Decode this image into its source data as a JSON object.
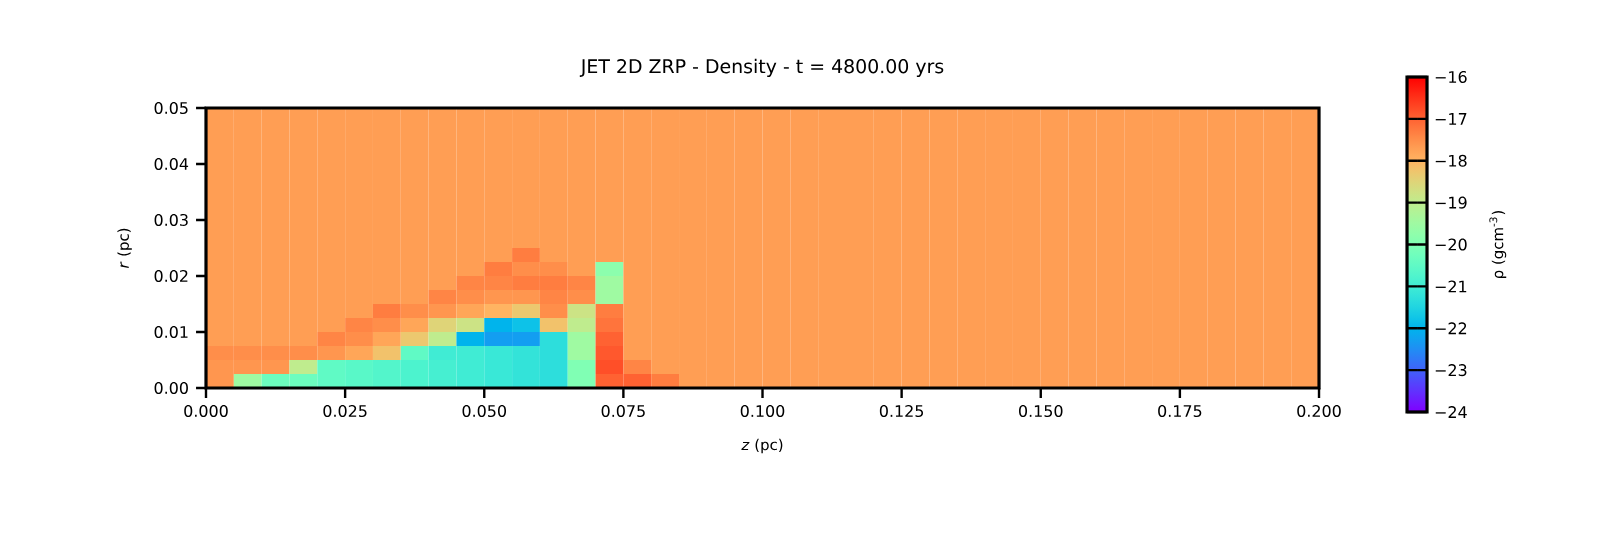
{
  "chart_data": {
    "type": "heatmap",
    "title": "JET 2D ZRP - Density - t = 4800.00 yrs",
    "xlabel": "*z*  (pc)",
    "ylabel": "*r*  (pc)",
    "clabel": "ρ  (gcm$^{-3}$)",
    "xlim": [
      0,
      0.2
    ],
    "ylim": [
      0,
      0.05
    ],
    "xticks": [
      {
        "value": 0,
        "label": "0.000"
      },
      {
        "value": 0.025,
        "label": "0.025"
      },
      {
        "value": 0.05,
        "label": "0.050"
      },
      {
        "value": 0.075,
        "label": "0.075"
      },
      {
        "value": 0.1,
        "label": "0.100"
      },
      {
        "value": 0.125,
        "label": "0.125"
      },
      {
        "value": 0.15,
        "label": "0.150"
      },
      {
        "value": 0.175,
        "label": "0.175"
      },
      {
        "value": 0.2,
        "label": "0.200"
      }
    ],
    "yticks": [
      {
        "value": 0,
        "label": "0.00"
      },
      {
        "value": 0.01,
        "label": "0.01"
      },
      {
        "value": 0.02,
        "label": "0.02"
      },
      {
        "value": 0.03,
        "label": "0.03"
      },
      {
        "value": 0.04,
        "label": "0.04"
      },
      {
        "value": 0.05,
        "label": "0.05"
      }
    ],
    "clim": [
      -24,
      -16
    ],
    "cticks": [
      {
        "value": -24,
        "label": "−24"
      },
      {
        "value": -23,
        "label": "−23"
      },
      {
        "value": -22,
        "label": "−22"
      },
      {
        "value": -21,
        "label": "−21"
      },
      {
        "value": -20,
        "label": "−20"
      },
      {
        "value": -19,
        "label": "−19"
      },
      {
        "value": -18,
        "label": "−18"
      },
      {
        "value": -17,
        "label": "−17"
      },
      {
        "value": -16,
        "label": "−16"
      }
    ],
    "x": [
      0.0025,
      0.0075,
      0.0125,
      0.0175,
      0.0225,
      0.0275,
      0.0325,
      0.0375,
      0.0425,
      0.0475,
      0.0525,
      0.0575,
      0.0625,
      0.0675,
      0.0725,
      0.0775,
      0.0825,
      0.0875,
      0.0925,
      0.0975,
      0.1025,
      0.1075,
      0.1125,
      0.1175,
      0.1225,
      0.1275,
      0.1325,
      0.1375,
      0.1425,
      0.1475,
      0.1525,
      0.1575,
      0.1625,
      0.1675,
      0.1725,
      0.1775,
      0.1825,
      0.1875,
      0.1925,
      0.1975
    ],
    "y": [
      0.04875,
      0.04625,
      0.04375,
      0.04125,
      0.03875,
      0.03625,
      0.03375,
      0.03125,
      0.02875,
      0.02625,
      0.02375,
      0.02125,
      0.01875,
      0.01625,
      0.01375,
      0.01125,
      0.00875,
      0.00625,
      0.00375,
      0.00125
    ],
    "cells": [
      [
        -17.7,
        -17.7,
        -17.7,
        -17.7,
        -17.7,
        -17.7,
        -17.7,
        -17.7,
        -17.7,
        -17.7,
        -17.7,
        -17.7,
        -17.7,
        -17.7,
        -17.7,
        -17.7,
        -17.7,
        -17.7,
        -17.7,
        -17.7,
        -17.7,
        -17.7,
        -17.7,
        -17.7,
        -17.7,
        -17.7,
        -17.7,
        -17.7,
        -17.7,
        -17.7,
        -17.7,
        -17.7,
        -17.7,
        -17.7,
        -17.7,
        -17.7,
        -17.7,
        -17.7,
        -17.7,
        -17.7
      ],
      [
        -17.7,
        -17.7,
        -17.7,
        -17.7,
        -17.7,
        -17.7,
        -17.7,
        -17.7,
        -17.7,
        -17.7,
        -17.7,
        -17.7,
        -17.7,
        -17.7,
        -17.7,
        -17.7,
        -17.7,
        -17.7,
        -17.7,
        -17.7,
        -17.7,
        -17.7,
        -17.7,
        -17.7,
        -17.7,
        -17.7,
        -17.7,
        -17.7,
        -17.7,
        -17.7,
        -17.7,
        -17.7,
        -17.7,
        -17.7,
        -17.7,
        -17.7,
        -17.7,
        -17.7,
        -17.7,
        -17.7
      ],
      [
        -17.7,
        -17.7,
        -17.7,
        -17.7,
        -17.7,
        -17.7,
        -17.7,
        -17.7,
        -17.7,
        -17.7,
        -17.7,
        -17.7,
        -17.7,
        -17.7,
        -17.7,
        -17.7,
        -17.7,
        -17.7,
        -17.7,
        -17.7,
        -17.7,
        -17.7,
        -17.7,
        -17.7,
        -17.7,
        -17.7,
        -17.7,
        -17.7,
        -17.7,
        -17.7,
        -17.7,
        -17.7,
        -17.7,
        -17.7,
        -17.7,
        -17.7,
        -17.7,
        -17.7,
        -17.7,
        -17.7
      ],
      [
        -17.7,
        -17.7,
        -17.7,
        -17.7,
        -17.7,
        -17.7,
        -17.7,
        -17.7,
        -17.7,
        -17.7,
        -17.7,
        -17.7,
        -17.7,
        -17.7,
        -17.7,
        -17.7,
        -17.7,
        -17.7,
        -17.7,
        -17.7,
        -17.7,
        -17.7,
        -17.7,
        -17.7,
        -17.7,
        -17.7,
        -17.7,
        -17.7,
        -17.7,
        -17.7,
        -17.7,
        -17.7,
        -17.7,
        -17.7,
        -17.7,
        -17.7,
        -17.7,
        -17.7,
        -17.7,
        -17.7
      ],
      [
        -17.7,
        -17.7,
        -17.7,
        -17.7,
        -17.7,
        -17.7,
        -17.7,
        -17.7,
        -17.7,
        -17.7,
        -17.7,
        -17.7,
        -17.7,
        -17.7,
        -17.7,
        -17.7,
        -17.7,
        -17.7,
        -17.7,
        -17.7,
        -17.7,
        -17.7,
        -17.7,
        -17.7,
        -17.7,
        -17.7,
        -17.7,
        -17.7,
        -17.7,
        -17.7,
        -17.7,
        -17.7,
        -17.7,
        -17.7,
        -17.7,
        -17.7,
        -17.7,
        -17.7,
        -17.7,
        -17.7
      ],
      [
        -17.7,
        -17.7,
        -17.7,
        -17.7,
        -17.7,
        -17.7,
        -17.7,
        -17.7,
        -17.7,
        -17.7,
        -17.7,
        -17.7,
        -17.7,
        -17.7,
        -17.7,
        -17.7,
        -17.7,
        -17.7,
        -17.7,
        -17.7,
        -17.7,
        -17.7,
        -17.7,
        -17.7,
        -17.7,
        -17.7,
        -17.7,
        -17.7,
        -17.7,
        -17.7,
        -17.7,
        -17.7,
        -17.7,
        -17.7,
        -17.7,
        -17.7,
        -17.7,
        -17.7,
        -17.7,
        -17.7
      ],
      [
        -17.7,
        -17.7,
        -17.7,
        -17.7,
        -17.7,
        -17.7,
        -17.7,
        -17.7,
        -17.7,
        -17.7,
        -17.7,
        -17.7,
        -17.7,
        -17.7,
        -17.7,
        -17.7,
        -17.7,
        -17.7,
        -17.7,
        -17.7,
        -17.7,
        -17.7,
        -17.7,
        -17.7,
        -17.7,
        -17.7,
        -17.7,
        -17.7,
        -17.7,
        -17.7,
        -17.7,
        -17.7,
        -17.7,
        -17.7,
        -17.7,
        -17.7,
        -17.7,
        -17.7,
        -17.7,
        -17.7
      ],
      [
        -17.7,
        -17.7,
        -17.7,
        -17.7,
        -17.7,
        -17.7,
        -17.7,
        -17.7,
        -17.7,
        -17.7,
        -17.7,
        -17.7,
        -17.7,
        -17.7,
        -17.7,
        -17.7,
        -17.7,
        -17.7,
        -17.7,
        -17.7,
        -17.7,
        -17.7,
        -17.7,
        -17.7,
        -17.7,
        -17.7,
        -17.7,
        -17.7,
        -17.7,
        -17.7,
        -17.7,
        -17.7,
        -17.7,
        -17.7,
        -17.7,
        -17.7,
        -17.7,
        -17.7,
        -17.7,
        -17.7
      ],
      [
        -17.7,
        -17.7,
        -17.7,
        -17.7,
        -17.7,
        -17.7,
        -17.7,
        -17.7,
        -17.7,
        -17.7,
        -17.7,
        -17.7,
        -17.7,
        -17.7,
        -17.7,
        -17.7,
        -17.7,
        -17.7,
        -17.7,
        -17.7,
        -17.7,
        -17.7,
        -17.7,
        -17.7,
        -17.7,
        -17.7,
        -17.7,
        -17.7,
        -17.7,
        -17.7,
        -17.7,
        -17.7,
        -17.7,
        -17.7,
        -17.7,
        -17.7,
        -17.7,
        -17.7,
        -17.7,
        -17.7
      ],
      [
        -17.7,
        -17.7,
        -17.7,
        -17.7,
        -17.7,
        -17.7,
        -17.7,
        -17.7,
        -17.7,
        -17.7,
        -17.7,
        -17.7,
        -17.7,
        -17.7,
        -17.7,
        -17.7,
        -17.7,
        -17.7,
        -17.7,
        -17.7,
        -17.7,
        -17.7,
        -17.7,
        -17.7,
        -17.7,
        -17.7,
        -17.7,
        -17.7,
        -17.7,
        -17.7,
        -17.7,
        -17.7,
        -17.7,
        -17.7,
        -17.7,
        -17.7,
        -17.7,
        -17.7,
        -17.7,
        -17.7
      ],
      [
        -17.7,
        -17.7,
        -17.7,
        -17.7,
        -17.7,
        -17.7,
        -17.7,
        -17.7,
        -17.7,
        -17.7,
        -17.7,
        -17.3,
        -17.7,
        -17.7,
        -17.7,
        -17.7,
        -17.7,
        -17.7,
        -17.7,
        -17.7,
        -17.7,
        -17.7,
        -17.7,
        -17.7,
        -17.7,
        -17.7,
        -17.7,
        -17.7,
        -17.7,
        -17.7,
        -17.7,
        -17.7,
        -17.7,
        -17.7,
        -17.7,
        -17.7,
        -17.7,
        -17.7,
        -17.7,
        -17.7
      ],
      [
        -17.7,
        -17.7,
        -17.7,
        -17.7,
        -17.7,
        -17.7,
        -17.7,
        -17.7,
        -17.7,
        -17.7,
        -17.3,
        -17.5,
        -17.5,
        -17.7,
        -19.8,
        -17.7,
        -17.7,
        -17.7,
        -17.7,
        -17.7,
        -17.7,
        -17.7,
        -17.7,
        -17.7,
        -17.7,
        -17.7,
        -17.7,
        -17.7,
        -17.7,
        -17.7,
        -17.7,
        -17.7,
        -17.7,
        -17.7,
        -17.7,
        -17.7,
        -17.7,
        -17.7,
        -17.7,
        -17.7
      ],
      [
        -17.7,
        -17.7,
        -17.7,
        -17.7,
        -17.7,
        -17.7,
        -17.7,
        -17.7,
        -17.7,
        -17.4,
        -17.4,
        -17.3,
        -17.3,
        -17.4,
        -19.5,
        -17.7,
        -17.7,
        -17.7,
        -17.7,
        -17.7,
        -17.7,
        -17.7,
        -17.7,
        -17.7,
        -17.7,
        -17.7,
        -17.7,
        -17.7,
        -17.7,
        -17.7,
        -17.7,
        -17.7,
        -17.7,
        -17.7,
        -17.7,
        -17.7,
        -17.7,
        -17.7,
        -17.7,
        -17.7
      ],
      [
        -17.7,
        -17.7,
        -17.7,
        -17.7,
        -17.7,
        -17.7,
        -17.7,
        -17.7,
        -17.4,
        -17.5,
        -17.6,
        -17.6,
        -17.4,
        -17.5,
        -19.5,
        -17.7,
        -17.7,
        -17.7,
        -17.7,
        -17.7,
        -17.7,
        -17.7,
        -17.7,
        -17.7,
        -17.7,
        -17.7,
        -17.7,
        -17.7,
        -17.7,
        -17.7,
        -17.7,
        -17.7,
        -17.7,
        -17.7,
        -17.7,
        -17.7,
        -17.7,
        -17.7,
        -17.7,
        -17.7
      ],
      [
        -17.7,
        -17.7,
        -17.7,
        -17.7,
        -17.7,
        -17.7,
        -17.3,
        -17.5,
        -17.6,
        -17.8,
        -18,
        -18.3,
        -17.5,
        -18.8,
        -17.3,
        -17.7,
        -17.7,
        -17.7,
        -17.7,
        -17.7,
        -17.7,
        -17.7,
        -17.7,
        -17.7,
        -17.7,
        -17.7,
        -17.7,
        -17.7,
        -17.7,
        -17.7,
        -17.7,
        -17.7,
        -17.7,
        -17.7,
        -17.7,
        -17.7,
        -17.7,
        -17.7,
        -17.7,
        -17.7
      ],
      [
        -17.7,
        -17.7,
        -17.7,
        -17.7,
        -17.7,
        -17.4,
        -17.5,
        -17.8,
        -18.5,
        -18.8,
        -22,
        -21.8,
        -18.2,
        -19,
        -17.2,
        -17.7,
        -17.7,
        -17.7,
        -17.7,
        -17.7,
        -17.7,
        -17.7,
        -17.7,
        -17.7,
        -17.7,
        -17.7,
        -17.7,
        -17.7,
        -17.7,
        -17.7,
        -17.7,
        -17.7,
        -17.7,
        -17.7,
        -17.7,
        -17.7,
        -17.7,
        -17.7,
        -17.7,
        -17.7
      ],
      [
        -17.7,
        -17.7,
        -17.7,
        -17.7,
        -17.4,
        -17.5,
        -17.8,
        -18.3,
        -19,
        -22,
        -22.3,
        -22.3,
        -21.3,
        -19.5,
        -17,
        -17.7,
        -17.7,
        -17.7,
        -17.7,
        -17.7,
        -17.7,
        -17.7,
        -17.7,
        -17.7,
        -17.7,
        -17.7,
        -17.7,
        -17.7,
        -17.7,
        -17.7,
        -17.7,
        -17.7,
        -17.7,
        -17.7,
        -17.7,
        -17.7,
        -17.7,
        -17.7,
        -17.7,
        -17.7
      ],
      [
        -17.5,
        -17.5,
        -17.5,
        -17.5,
        -17.6,
        -17.8,
        -18.2,
        -20.5,
        -21,
        -21,
        -21.1,
        -21.2,
        -21.3,
        -19.5,
        -16.9,
        -17.7,
        -17.7,
        -17.7,
        -17.7,
        -17.7,
        -17.7,
        -17.7,
        -17.7,
        -17.7,
        -17.7,
        -17.7,
        -17.7,
        -17.7,
        -17.7,
        -17.7,
        -17.7,
        -17.7,
        -17.7,
        -17.7,
        -17.7,
        -17.7,
        -17.7,
        -17.7,
        -17.7,
        -17.7
      ],
      [
        -17.6,
        -17.6,
        -17.6,
        -19,
        -20.5,
        -20.6,
        -20.7,
        -20.8,
        -20.9,
        -21,
        -21.1,
        -21.2,
        -21.3,
        -20,
        -16.8,
        -17.4,
        -17.7,
        -17.7,
        -17.7,
        -17.7,
        -17.7,
        -17.7,
        -17.7,
        -17.7,
        -17.7,
        -17.7,
        -17.7,
        -17.7,
        -17.7,
        -17.7,
        -17.7,
        -17.7,
        -17.7,
        -17.7,
        -17.7,
        -17.7,
        -17.7,
        -17.7,
        -17.7,
        -17.7
      ],
      [
        -17.6,
        -19.5,
        -20.3,
        -20.3,
        -20.5,
        -20.6,
        -20.7,
        -20.8,
        -20.9,
        -21,
        -21.1,
        -21.2,
        -21.3,
        -20,
        -17,
        -17,
        -17.3,
        -17.7,
        -17.7,
        -17.7,
        -17.7,
        -17.7,
        -17.7,
        -17.7,
        -17.7,
        -17.7,
        -17.7,
        -17.7,
        -17.7,
        -17.7,
        -17.7,
        -17.7,
        -17.7,
        -17.7,
        -17.7,
        -17.7,
        -17.7,
        -17.7,
        -17.7,
        -17.7
      ]
    ]
  }
}
